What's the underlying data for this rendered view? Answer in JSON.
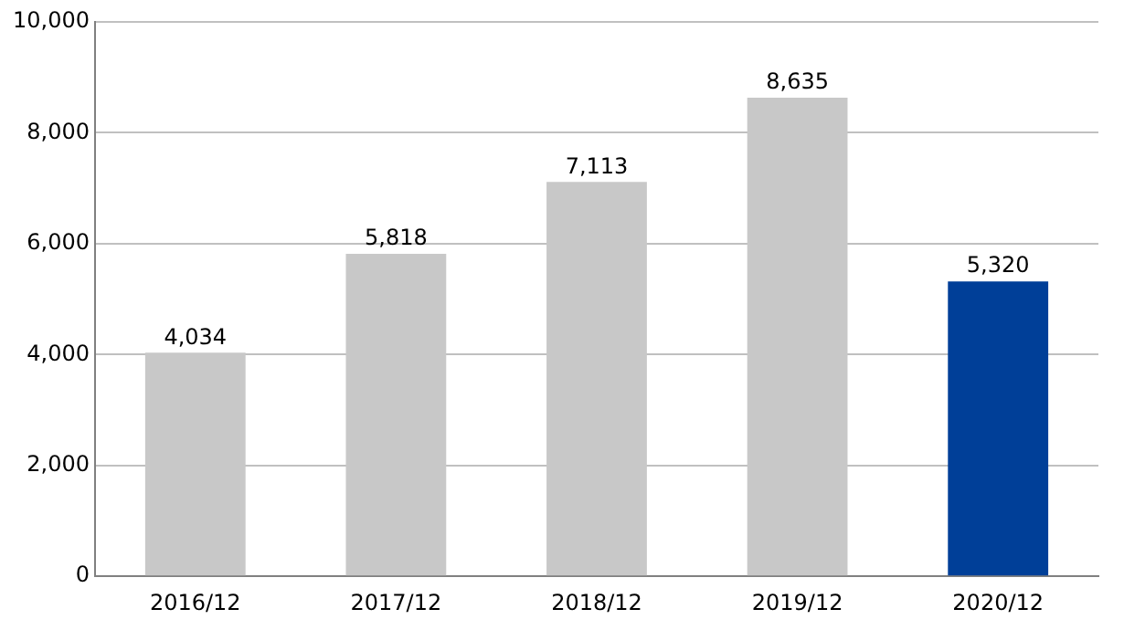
{
  "chart_data": {
    "type": "bar",
    "categories": [
      "2016/12",
      "2017/12",
      "2018/12",
      "2019/12",
      "2020/12"
    ],
    "values": [
      4034,
      5818,
      7113,
      8635,
      5320
    ],
    "colors": [
      "#c8c8c8",
      "#c8c8c8",
      "#c8c8c8",
      "#c8c8c8",
      "#003f98"
    ],
    "value_labels": [
      "4,034",
      "5,818",
      "7,113",
      "8,635",
      "5,320"
    ],
    "ylim": [
      0,
      10000
    ],
    "yticks": [
      0,
      {
        "value": 2000,
        "label": "2,000"
      },
      {
        "value": 4000,
        "label": "4,000"
      },
      {
        "value": 6000,
        "label": "6,000"
      },
      {
        "value": 8000,
        "label": "8,000"
      },
      {
        "value": 10000,
        "label": "10,000"
      }
    ],
    "grid": "y",
    "legend": false
  }
}
